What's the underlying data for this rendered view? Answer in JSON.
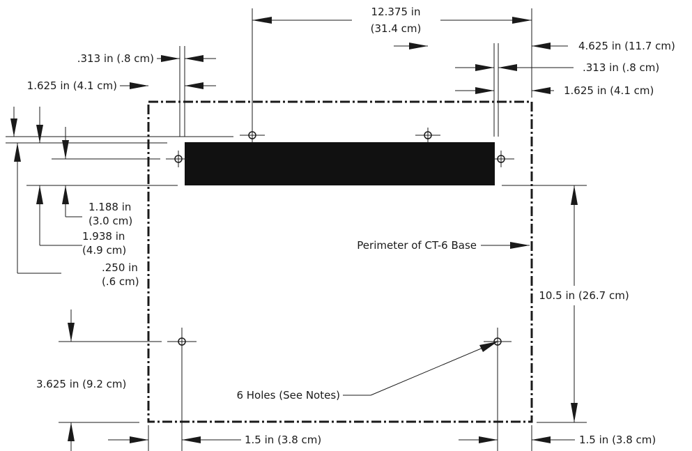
{
  "labels": {
    "top_width_in": "12.375 in",
    "top_width_cm": "(31.4 cm)",
    "left_offset_313": ".313 in (.8 cm)",
    "left_offset_1625": "1.625 in (4.1 cm)",
    "right_offset_4625": "4.625 in (11.7 cm)",
    "right_offset_313": ".313 in (.8 cm)",
    "right_offset_1625": "1.625 in (4.1 cm)",
    "v_1188_in": "1.188 in",
    "v_1188_cm": "(3.0 cm)",
    "v_1938_in": "1.938 in",
    "v_1938_cm": "(4.9 cm)",
    "v_250_in": ".250 in",
    "v_250_cm": "(.6 cm)",
    "perimeter": "Perimeter of CT-6 Base",
    "height_105": "10.5 in (26.7 cm)",
    "v_3625": "3.625 in (9.2 cm)",
    "holes": "6 Holes (See Notes)",
    "bottom_left_15": "1.5 in (3.8 cm)",
    "bottom_right_15": "1.5 in (3.8 cm)"
  }
}
